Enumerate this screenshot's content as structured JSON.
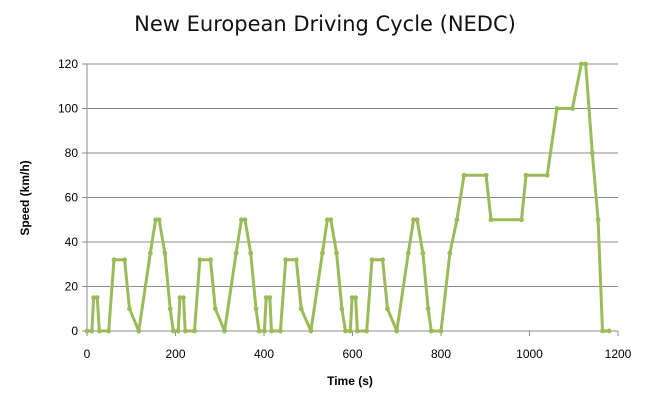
{
  "chart_data": {
    "type": "line",
    "title": "New European Driving Cycle (NEDC)",
    "xlabel": "Time (s)",
    "ylabel": "Speed (km/h)",
    "xlim": [
      0,
      1200
    ],
    "ylim": [
      0,
      120
    ],
    "xticks": [
      0,
      200,
      400,
      600,
      800,
      1000,
      1200
    ],
    "yticks": [
      0,
      20,
      40,
      60,
      80,
      100,
      120
    ],
    "grid": "horizontal",
    "legend": "none",
    "series_color": "#9bbb59",
    "series": [
      {
        "values": [
          [
            0,
            0
          ],
          [
            11,
            0
          ],
          [
            15,
            15
          ],
          [
            23,
            15
          ],
          [
            28,
            0
          ],
          [
            49,
            0
          ],
          [
            61,
            32
          ],
          [
            85,
            32
          ],
          [
            96,
            10
          ],
          [
            117,
            0
          ],
          [
            143,
            35
          ],
          [
            155,
            50
          ],
          [
            163,
            50
          ],
          [
            176,
            35
          ],
          [
            188,
            10
          ],
          [
            195,
            0
          ],
          [
            206,
            0
          ],
          [
            210,
            15
          ],
          [
            218,
            15
          ],
          [
            222,
            0
          ],
          [
            243,
            0
          ],
          [
            255,
            32
          ],
          [
            279,
            32
          ],
          [
            290,
            10
          ],
          [
            311,
            0
          ],
          [
            337,
            35
          ],
          [
            349,
            50
          ],
          [
            357,
            50
          ],
          [
            370,
            35
          ],
          [
            382,
            10
          ],
          [
            389,
            0
          ],
          [
            401,
            0
          ],
          [
            405,
            15
          ],
          [
            413,
            15
          ],
          [
            417,
            0
          ],
          [
            437,
            0
          ],
          [
            449,
            32
          ],
          [
            473,
            32
          ],
          [
            484,
            10
          ],
          [
            506,
            0
          ],
          [
            532,
            35
          ],
          [
            543,
            50
          ],
          [
            551,
            50
          ],
          [
            564,
            35
          ],
          [
            576,
            10
          ],
          [
            584,
            0
          ],
          [
            595,
            0
          ],
          [
            599,
            15
          ],
          [
            607,
            15
          ],
          [
            611,
            0
          ],
          [
            632,
            0
          ],
          [
            644,
            32
          ],
          [
            668,
            32
          ],
          [
            679,
            10
          ],
          [
            700,
            0
          ],
          [
            726,
            35
          ],
          [
            738,
            50
          ],
          [
            746,
            50
          ],
          [
            759,
            35
          ],
          [
            771,
            10
          ],
          [
            778,
            0
          ],
          [
            800,
            0
          ],
          [
            820,
            35
          ],
          [
            836,
            50
          ],
          [
            852,
            70
          ],
          [
            902,
            70
          ],
          [
            913,
            50
          ],
          [
            982,
            50
          ],
          [
            992,
            70
          ],
          [
            1040,
            70
          ],
          [
            1062,
            100
          ],
          [
            1097,
            100
          ],
          [
            1117,
            120
          ],
          [
            1127,
            120
          ],
          [
            1142,
            80
          ],
          [
            1155,
            50
          ],
          [
            1165,
            0
          ],
          [
            1180,
            0
          ]
        ]
      }
    ]
  }
}
